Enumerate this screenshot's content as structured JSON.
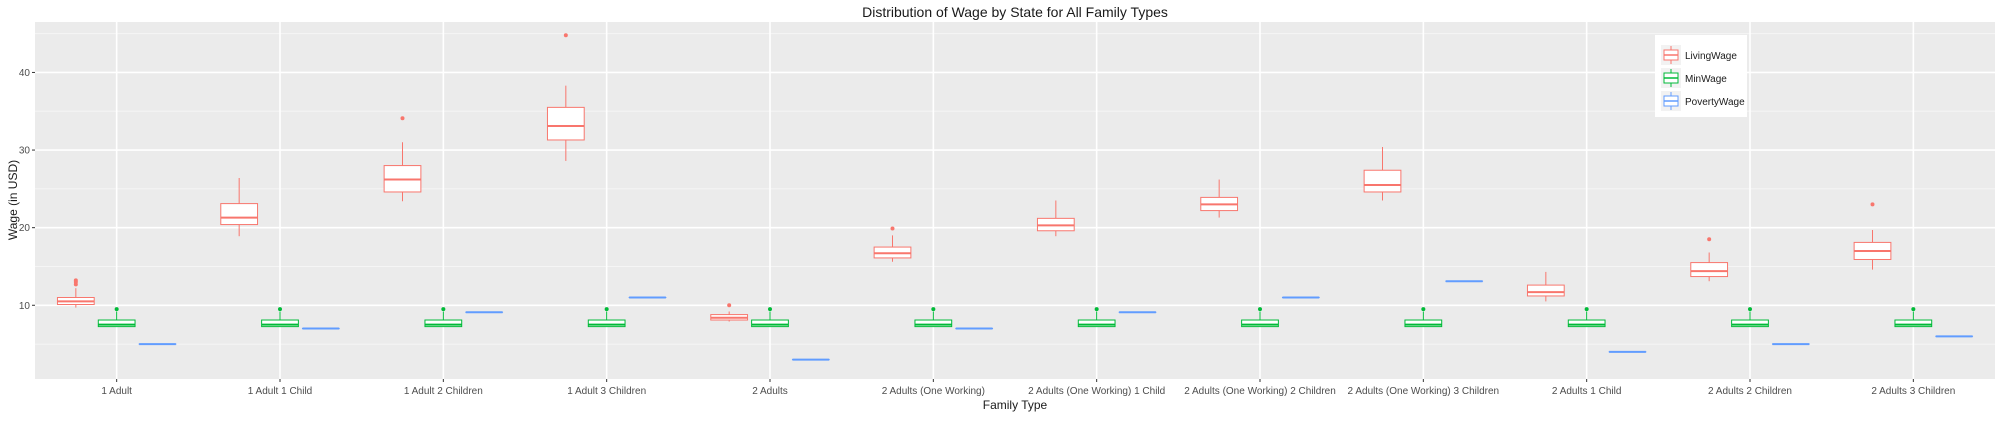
{
  "chart_data": {
    "type": "boxplot",
    "title": "Distribution of Wage by State for All Family Types",
    "xlabel": "Family Type",
    "ylabel": "Wage (in USD)",
    "ylim": [
      0.5,
      46.5
    ],
    "yticks": [
      10,
      20,
      30,
      40
    ],
    "grid": true,
    "legend_position": "top-right",
    "categories": [
      "1 Adult",
      "1 Adult 1 Child",
      "1 Adult 2 Children",
      "1 Adult 3 Children",
      "2 Adults",
      "2 Adults (One Working)",
      "2 Adults (One Working) 1 Child",
      "2 Adults (One Working) 2 Children",
      "2 Adults (One Working) 3 Children",
      "2 Adults 1 Child",
      "2 Adults 2 Children",
      "2 Adults 3 Children"
    ],
    "series": [
      {
        "name": "LivingWage",
        "color": "#F8766D",
        "boxes": [
          {
            "min": 9.7,
            "q1": 10.1,
            "median": 10.5,
            "q3": 11.0,
            "max": 12.2,
            "outliers": [
              12.7,
              13.0,
              13.2
            ]
          },
          {
            "min": 18.9,
            "q1": 20.4,
            "median": 21.3,
            "q3": 23.1,
            "max": 26.4,
            "outliers": []
          },
          {
            "min": 23.4,
            "q1": 24.6,
            "median": 26.2,
            "q3": 28.0,
            "max": 31.0,
            "outliers": [
              34.1
            ]
          },
          {
            "min": 28.6,
            "q1": 31.3,
            "median": 33.1,
            "q3": 35.5,
            "max": 38.3,
            "outliers": [
              44.8
            ]
          },
          {
            "min": 7.9,
            "q1": 8.1,
            "median": 8.4,
            "q3": 8.8,
            "max": 9.2,
            "outliers": [
              10.0
            ]
          },
          {
            "min": 15.6,
            "q1": 16.1,
            "median": 16.7,
            "q3": 17.5,
            "max": 19.0,
            "outliers": [
              19.9
            ]
          },
          {
            "min": 18.9,
            "q1": 19.6,
            "median": 20.3,
            "q3": 21.2,
            "max": 23.5,
            "outliers": []
          },
          {
            "min": 21.3,
            "q1": 22.2,
            "median": 23.0,
            "q3": 23.9,
            "max": 26.2,
            "outliers": []
          },
          {
            "min": 23.5,
            "q1": 24.6,
            "median": 25.5,
            "q3": 27.4,
            "max": 30.4,
            "outliers": []
          },
          {
            "min": 10.5,
            "q1": 11.2,
            "median": 11.7,
            "q3": 12.6,
            "max": 14.3,
            "outliers": []
          },
          {
            "min": 13.1,
            "q1": 13.7,
            "median": 14.4,
            "q3": 15.5,
            "max": 16.8,
            "outliers": [
              18.5
            ]
          },
          {
            "min": 14.6,
            "q1": 15.9,
            "median": 17.0,
            "q3": 18.1,
            "max": 19.7,
            "outliers": [
              23.0
            ]
          }
        ]
      },
      {
        "name": "MinWage",
        "color": "#00BA38",
        "boxes": [
          {
            "min": 7.25,
            "q1": 7.25,
            "median": 7.5,
            "q3": 8.1,
            "max": 9.2,
            "outliers": [
              9.5
            ]
          },
          {
            "min": 7.25,
            "q1": 7.25,
            "median": 7.5,
            "q3": 8.1,
            "max": 9.2,
            "outliers": [
              9.5
            ]
          },
          {
            "min": 7.25,
            "q1": 7.25,
            "median": 7.5,
            "q3": 8.1,
            "max": 9.2,
            "outliers": [
              9.5
            ]
          },
          {
            "min": 7.25,
            "q1": 7.25,
            "median": 7.5,
            "q3": 8.1,
            "max": 9.2,
            "outliers": [
              9.5
            ]
          },
          {
            "min": 7.25,
            "q1": 7.25,
            "median": 7.5,
            "q3": 8.1,
            "max": 9.2,
            "outliers": [
              9.5
            ]
          },
          {
            "min": 7.25,
            "q1": 7.25,
            "median": 7.5,
            "q3": 8.1,
            "max": 9.2,
            "outliers": [
              9.5
            ]
          },
          {
            "min": 7.25,
            "q1": 7.25,
            "median": 7.5,
            "q3": 8.1,
            "max": 9.2,
            "outliers": [
              9.5
            ]
          },
          {
            "min": 7.25,
            "q1": 7.25,
            "median": 7.5,
            "q3": 8.1,
            "max": 9.2,
            "outliers": [
              9.5
            ]
          },
          {
            "min": 7.25,
            "q1": 7.25,
            "median": 7.5,
            "q3": 8.1,
            "max": 9.2,
            "outliers": [
              9.5
            ]
          },
          {
            "min": 7.25,
            "q1": 7.25,
            "median": 7.5,
            "q3": 8.1,
            "max": 9.2,
            "outliers": [
              9.5
            ]
          },
          {
            "min": 7.25,
            "q1": 7.25,
            "median": 7.5,
            "q3": 8.1,
            "max": 9.2,
            "outliers": [
              9.5
            ]
          },
          {
            "min": 7.25,
            "q1": 7.25,
            "median": 7.5,
            "q3": 8.1,
            "max": 9.2,
            "outliers": [
              9.5
            ]
          }
        ]
      },
      {
        "name": "PovertyWage",
        "color": "#619CFF",
        "boxes": [
          {
            "min": 5.0,
            "q1": 5.0,
            "median": 5.0,
            "q3": 5.0,
            "max": 5.0,
            "outliers": []
          },
          {
            "min": 7.0,
            "q1": 7.0,
            "median": 7.0,
            "q3": 7.0,
            "max": 7.0,
            "outliers": []
          },
          {
            "min": 9.1,
            "q1": 9.1,
            "median": 9.1,
            "q3": 9.1,
            "max": 9.1,
            "outliers": []
          },
          {
            "min": 11.0,
            "q1": 11.0,
            "median": 11.0,
            "q3": 11.0,
            "max": 11.0,
            "outliers": []
          },
          {
            "min": 3.0,
            "q1": 3.0,
            "median": 3.0,
            "q3": 3.0,
            "max": 3.0,
            "outliers": []
          },
          {
            "min": 7.0,
            "q1": 7.0,
            "median": 7.0,
            "q3": 7.0,
            "max": 7.0,
            "outliers": []
          },
          {
            "min": 9.1,
            "q1": 9.1,
            "median": 9.1,
            "q3": 9.1,
            "max": 9.1,
            "outliers": []
          },
          {
            "min": 11.0,
            "q1": 11.0,
            "median": 11.0,
            "q3": 11.0,
            "max": 11.0,
            "outliers": []
          },
          {
            "min": 13.1,
            "q1": 13.1,
            "median": 13.1,
            "q3": 13.1,
            "max": 13.1,
            "outliers": []
          },
          {
            "min": 4.0,
            "q1": 4.0,
            "median": 4.0,
            "q3": 4.0,
            "max": 4.0,
            "outliers": []
          },
          {
            "min": 5.0,
            "q1": 5.0,
            "median": 5.0,
            "q3": 5.0,
            "max": 5.0,
            "outliers": []
          },
          {
            "min": 6.0,
            "q1": 6.0,
            "median": 6.0,
            "q3": 6.0,
            "max": 6.0,
            "outliers": []
          }
        ]
      }
    ]
  }
}
